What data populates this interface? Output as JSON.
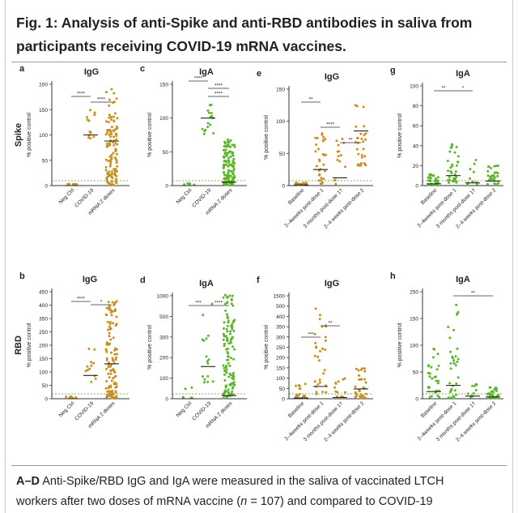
{
  "figure": {
    "title": "Fig. 1: Analysis of anti-Spike and anti-RBD antibodies in saliva from participants receiving COVID-19 mRNA vaccines.",
    "caption_prefix": "A–D",
    "caption_line1": " Anti-Spike/RBD IgG and IgA were measured in the saliva of vaccinated LTCH",
    "caption_line2_a": "workers after two doses of mRNA vaccine (",
    "caption_line2_n": "n",
    "caption_line2_b": " = 107) and compared to COVID-19"
  },
  "colors": {
    "gold": "#c8901e",
    "green": "#5db52a",
    "dashed": "#5a9a30"
  },
  "chart_data": [
    {
      "panel": "a",
      "type": "scatter",
      "title": "IgG",
      "row_label": "Spike",
      "ylabel": "% positive control",
      "yticks": [
        "0",
        "50",
        "100",
        "150",
        "200"
      ],
      "categories": [
        "Neg Ctrl",
        "COVID-19",
        "mRNA 2 doses"
      ],
      "medians": [
        0,
        100,
        88
      ],
      "significance": [
        "****",
        "****"
      ]
    },
    {
      "panel": "c",
      "type": "scatter",
      "title": "IgA",
      "ylabel": "% positive control",
      "yticks": [
        "0",
        "50",
        "100",
        "150"
      ],
      "categories": [
        "Neg Ctrl",
        "COVID-19",
        "mRNA 2 doses"
      ],
      "medians": [
        0,
        100,
        5
      ],
      "significance": [
        "****",
        "****",
        "****"
      ]
    },
    {
      "panel": "e",
      "type": "scatter",
      "title": "IgG",
      "ylabel": "% positive control",
      "yticks": [
        "0",
        "50",
        "100",
        "150"
      ],
      "categories": [
        "Baseline",
        "2–4weeks post-dose 1",
        "3 months post-dose 1†",
        "2–4 weeks post-dose 2"
      ],
      "medians": [
        1,
        25,
        12,
        85
      ],
      "significance": [
        "**",
        "****",
        "**"
      ]
    },
    {
      "panel": "g",
      "type": "scatter",
      "title": "IgA",
      "ylabel": "% positive control",
      "yticks": [
        "0",
        "20",
        "40",
        "60",
        "80",
        "100"
      ],
      "categories": [
        "Baseline",
        "2–4weeks post-dose 1",
        "3 months post-dose 1†",
        "2–4 weeks post-dose 2"
      ],
      "medians": [
        2,
        11,
        3,
        5
      ],
      "significance": [
        "**",
        "*"
      ]
    },
    {
      "panel": "b",
      "type": "scatter",
      "title": "IgG",
      "row_label": "RBD",
      "ylabel": "% positive control",
      "yticks": [
        "0",
        "50",
        "100",
        "150",
        "200",
        "250",
        "350",
        "400",
        "450"
      ],
      "categories": [
        "Neg Ctrl",
        "COVID-19",
        "mRNA 2 doses"
      ],
      "medians": [
        0,
        100,
        150
      ],
      "significance": [
        "****",
        "*"
      ]
    },
    {
      "panel": "d",
      "type": "scatter",
      "title": "IgA",
      "ylabel": "% positive control",
      "yticks": [
        "0",
        "100",
        "200",
        "300",
        "500",
        "1000"
      ],
      "categories": [
        "Neg Ctrl",
        "COVID-19",
        "mRNA 2 doses"
      ],
      "medians": [
        0,
        100,
        10
      ],
      "significance": [
        "***",
        "****"
      ]
    },
    {
      "panel": "f",
      "type": "scatter",
      "title": "IgG",
      "ylabel": "% positive control",
      "yticks": [
        "0",
        "50",
        "100",
        "150",
        "200",
        "250",
        "300",
        "350",
        "400",
        "500",
        "1500"
      ],
      "categories": [
        "Baseline",
        "2–4weeks post-dose 1",
        "3 months post-dose 1†",
        "2–4 weeks post-dose 2"
      ],
      "medians": [
        3,
        50,
        5,
        40
      ],
      "significance": [
        "***",
        "**"
      ]
    },
    {
      "panel": "h",
      "type": "scatter",
      "title": "IgA",
      "ylabel": "% positive control",
      "yticks": [
        "0",
        "50",
        "100",
        "150",
        "250"
      ],
      "categories": [
        "Baseline",
        "2–4weeks post-dose 1",
        "3 months post-dose 1†",
        "2–4 weeks post-dose 2"
      ],
      "medians": [
        8,
        15,
        3,
        2
      ],
      "significance": [
        "**"
      ]
    }
  ]
}
